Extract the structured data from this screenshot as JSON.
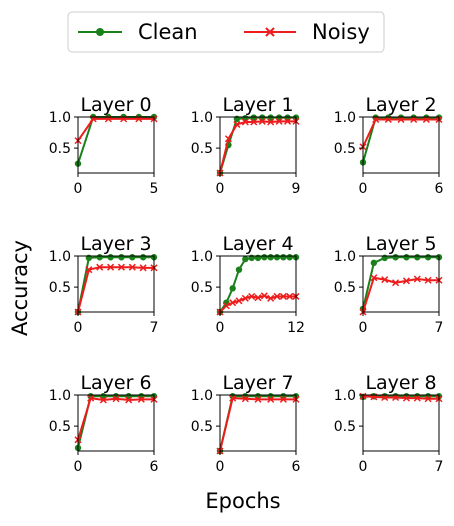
{
  "chart_data": {
    "type": "line",
    "ylabel": "Accuracy",
    "xlabel": "Epochs",
    "legend": {
      "placement": "top-center",
      "entries": [
        {
          "name": "Clean",
          "color": "#1a801a",
          "marker": "circle"
        },
        {
          "name": "Noisy",
          "color": "#ee1c1c",
          "marker": "x"
        }
      ]
    },
    "yticks": [
      "0.5",
      "1.0"
    ],
    "ylim": [
      0.1,
      1.0
    ],
    "panels": [
      {
        "title": "Layer 0",
        "xmax": 5,
        "xticks": [
          0,
          5
        ],
        "series": [
          {
            "name": "Clean",
            "values": [
              0.25,
              1.0,
              1.0,
              1.0,
              1.0,
              1.0
            ]
          },
          {
            "name": "Noisy",
            "values": [
              0.62,
              0.97,
              0.97,
              0.97,
              0.97,
              0.97
            ]
          }
        ]
      },
      {
        "title": "Layer 1",
        "xmax": 9,
        "xticks": [
          0,
          9
        ],
        "series": [
          {
            "name": "Clean",
            "values": [
              0.1,
              0.55,
              0.97,
              0.98,
              0.99,
              0.99,
              0.99,
              0.99,
              0.99,
              0.99
            ]
          },
          {
            "name": "Noisy",
            "values": [
              0.1,
              0.65,
              0.88,
              0.92,
              0.92,
              0.93,
              0.92,
              0.93,
              0.93,
              0.93
            ]
          }
        ]
      },
      {
        "title": "Layer 2",
        "xmax": 6,
        "xticks": [
          0,
          6
        ],
        "series": [
          {
            "name": "Clean",
            "values": [
              0.27,
              0.99,
              0.99,
              0.99,
              0.99,
              0.99,
              0.99
            ]
          },
          {
            "name": "Noisy",
            "values": [
              0.52,
              0.96,
              0.96,
              0.96,
              0.96,
              0.96,
              0.96
            ]
          }
        ]
      },
      {
        "title": "Layer 3",
        "xmax": 7,
        "xticks": [
          0,
          7
        ],
        "series": [
          {
            "name": "Clean",
            "values": [
              0.1,
              0.97,
              0.98,
              0.98,
              0.98,
              0.98,
              0.98,
              0.98
            ]
          },
          {
            "name": "Noisy",
            "values": [
              0.1,
              0.78,
              0.82,
              0.82,
              0.82,
              0.82,
              0.81,
              0.81
            ]
          }
        ]
      },
      {
        "title": "Layer 4",
        "xmax": 12,
        "xticks": [
          0,
          12
        ],
        "series": [
          {
            "name": "Clean",
            "values": [
              0.1,
              0.25,
              0.48,
              0.78,
              0.95,
              0.97,
              0.97,
              0.98,
              0.98,
              0.98,
              0.98,
              0.98,
              0.98
            ]
          },
          {
            "name": "Noisy",
            "values": [
              0.1,
              0.2,
              0.25,
              0.28,
              0.32,
              0.35,
              0.33,
              0.36,
              0.32,
              0.35,
              0.35,
              0.35,
              0.35
            ]
          }
        ]
      },
      {
        "title": "Layer 5",
        "xmax": 7,
        "xticks": [
          0,
          7
        ],
        "series": [
          {
            "name": "Clean",
            "values": [
              0.15,
              0.89,
              0.97,
              0.98,
              0.98,
              0.98,
              0.98,
              0.98
            ]
          },
          {
            "name": "Noisy",
            "values": [
              0.1,
              0.65,
              0.62,
              0.57,
              0.6,
              0.63,
              0.61,
              0.61
            ]
          }
        ]
      },
      {
        "title": "Layer 6",
        "xmax": 6,
        "xticks": [
          0,
          6
        ],
        "series": [
          {
            "name": "Clean",
            "values": [
              0.15,
              0.98,
              0.98,
              0.98,
              0.98,
              0.98,
              0.98
            ]
          },
          {
            "name": "Noisy",
            "values": [
              0.28,
              0.95,
              0.92,
              0.94,
              0.92,
              0.93,
              0.93
            ]
          }
        ]
      },
      {
        "title": "Layer 7",
        "xmax": 6,
        "xticks": [
          0,
          6
        ],
        "series": [
          {
            "name": "Clean",
            "values": [
              0.1,
              0.98,
              0.98,
              0.98,
              0.98,
              0.98,
              0.98
            ]
          },
          {
            "name": "Noisy",
            "values": [
              0.1,
              0.95,
              0.94,
              0.93,
              0.93,
              0.93,
              0.93
            ]
          }
        ]
      },
      {
        "title": "Layer 8",
        "xmax": 7,
        "xticks": [
          0,
          7
        ],
        "series": [
          {
            "name": "Clean",
            "values": [
              0.97,
              0.98,
              0.98,
              0.98,
              0.98,
              0.98,
              0.98,
              0.98
            ]
          },
          {
            "name": "Noisy",
            "values": [
              0.98,
              0.97,
              0.96,
              0.96,
              0.95,
              0.95,
              0.94,
              0.94
            ]
          }
        ]
      }
    ]
  }
}
